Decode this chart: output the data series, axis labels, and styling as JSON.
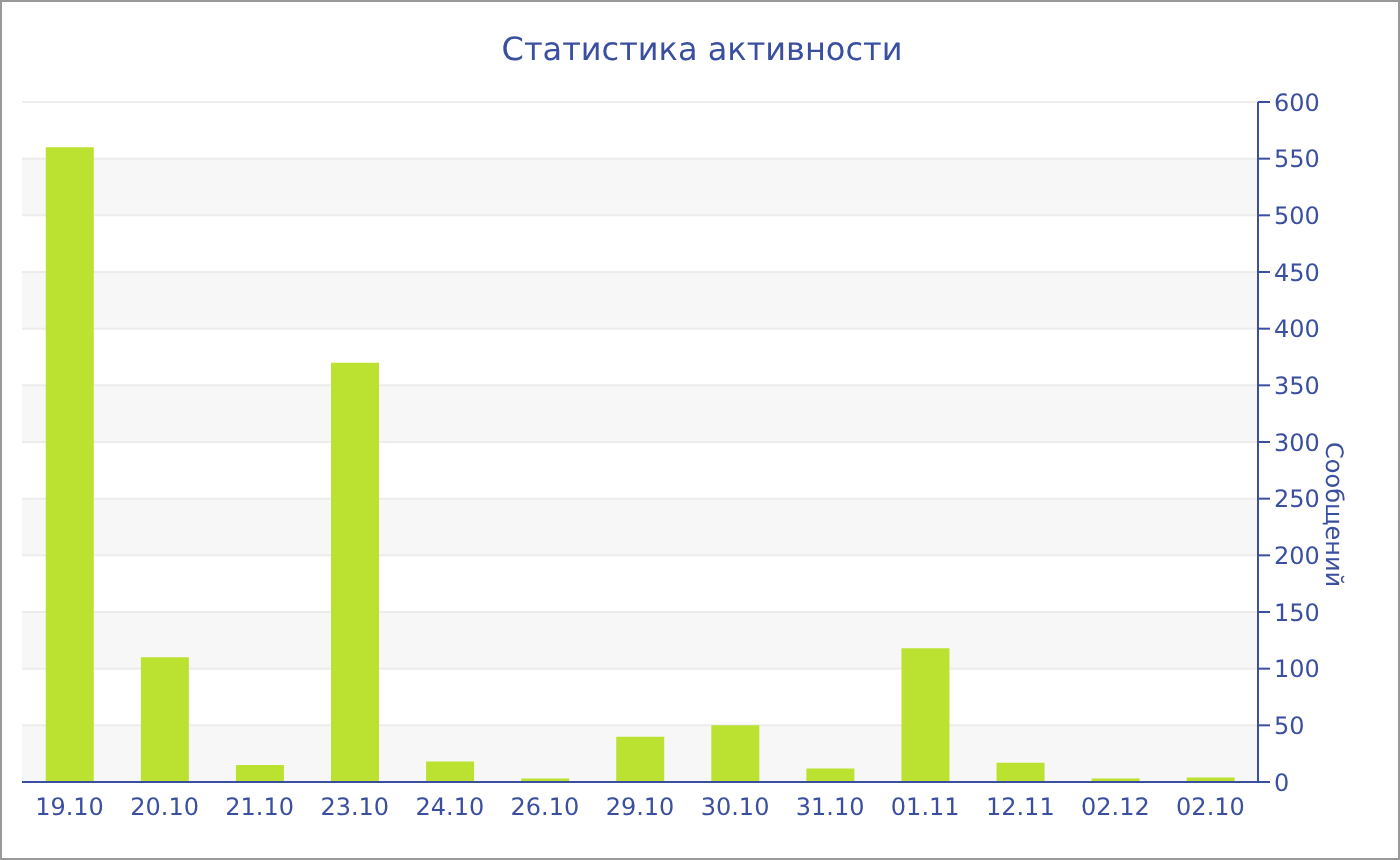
{
  "chart_data": {
    "type": "bar",
    "title": "Статистика активности",
    "ylabel": "Сообщений",
    "categories": [
      "19.10",
      "20.10",
      "21.10",
      "23.10",
      "24.10",
      "26.10",
      "29.10",
      "30.10",
      "31.10",
      "01.11",
      "12.11",
      "02.12",
      "02.10"
    ],
    "values": [
      560,
      110,
      15,
      370,
      18,
      3,
      40,
      50,
      12,
      118,
      17,
      3,
      4
    ],
    "color": "#bbe131",
    "ylim": [
      0,
      600
    ],
    "yticks": [
      0,
      50,
      100,
      150,
      200,
      250,
      300,
      350,
      400,
      450,
      500,
      550,
      600
    ],
    "grid": "y"
  }
}
